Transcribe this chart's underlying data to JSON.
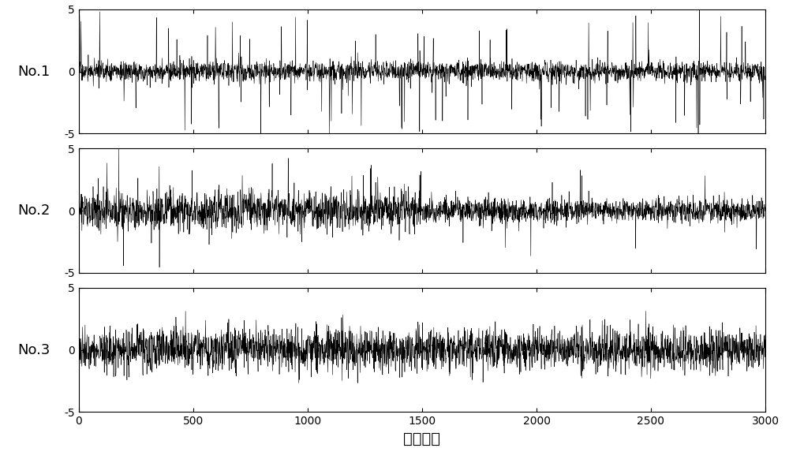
{
  "n_samples": 3000,
  "ylim": [
    -5,
    5
  ],
  "xlim": [
    0,
    3000
  ],
  "yticks": [
    -5,
    0,
    5
  ],
  "xticks": [
    0,
    500,
    1000,
    1500,
    2000,
    2500,
    3000
  ],
  "ylabel_labels": [
    "No.1",
    "No.2",
    "No.3"
  ],
  "xlabel": "采样点数",
  "line_color": "#000000",
  "line_width": 0.4,
  "bg_color": "#ffffff",
  "label_fontsize": 13,
  "tick_fontsize": 10,
  "xlabel_fontsize": 14
}
